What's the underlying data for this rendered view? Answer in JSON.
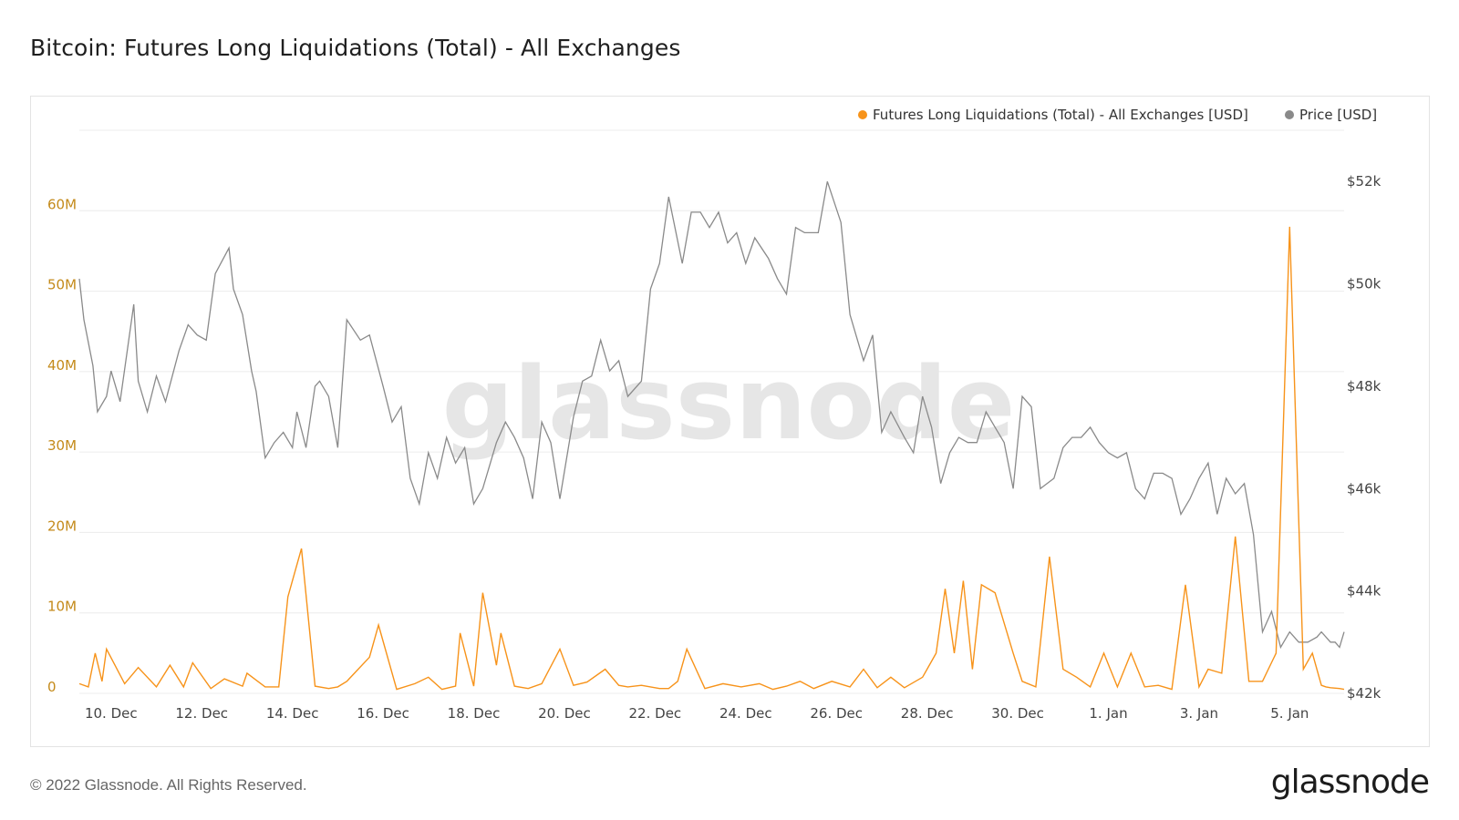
{
  "title": "Bitcoin: Futures Long Liquidations (Total) - All Exchanges",
  "footer": {
    "copyright": "© 2022 Glassnode. All Rights Reserved.",
    "logo": "glassnode"
  },
  "watermark": "glassnode",
  "colors": {
    "liquidations": "#f7931a",
    "price": "#8a8a8a",
    "left_axis_text": "#c48a1a",
    "grid": "#ececec"
  },
  "chart_data": {
    "type": "line",
    "title": "Bitcoin: Futures Long Liquidations (Total) - All Exchanges",
    "legend": [
      {
        "name": "Futures Long Liquidations (Total) - All Exchanges [USD]",
        "color": "#f7931a"
      },
      {
        "name": "Price [USD]",
        "color": "#8a8a8a"
      }
    ],
    "legend_position": "top-right",
    "grid": true,
    "x_ticks": [
      "10. Dec",
      "12. Dec",
      "14. Dec",
      "16. Dec",
      "18. Dec",
      "20. Dec",
      "22. Dec",
      "24. Dec",
      "26. Dec",
      "28. Dec",
      "30. Dec",
      "1. Jan",
      "3. Jan",
      "5. Jan"
    ],
    "x_range_days": [
      -0.7,
      27.2
    ],
    "y_left": {
      "ticks": [
        "0",
        "10M",
        "20M",
        "30M",
        "40M",
        "50M",
        "60M"
      ],
      "range": [
        0,
        70000000
      ]
    },
    "y_right": {
      "ticks": [
        "$42k",
        "$44k",
        "$46k",
        "$48k",
        "$50k",
        "$52k"
      ],
      "range": [
        42000,
        53000
      ]
    },
    "series": [
      {
        "name": "Futures Long Liquidations (Total) - All Exchanges [USD]",
        "axis": "left",
        "x_days": [
          -0.7,
          -0.5,
          -0.35,
          -0.2,
          -0.1,
          0.3,
          0.6,
          1.0,
          1.3,
          1.6,
          1.8,
          2.2,
          2.5,
          2.9,
          3.0,
          3.4,
          3.7,
          3.9,
          4.2,
          4.5,
          4.8,
          5.0,
          5.2,
          5.7,
          5.9,
          6.3,
          6.7,
          7.0,
          7.3,
          7.6,
          7.7,
          8.0,
          8.2,
          8.5,
          8.6,
          8.9,
          9.2,
          9.5,
          9.9,
          10.2,
          10.5,
          10.9,
          11.2,
          11.4,
          11.7,
          12.1,
          12.3,
          12.5,
          12.7,
          13.1,
          13.5,
          13.9,
          14.3,
          14.6,
          14.9,
          15.2,
          15.5,
          15.9,
          16.3,
          16.6,
          16.9,
          17.2,
          17.5,
          17.9,
          18.2,
          18.4,
          18.6,
          18.8,
          19.0,
          19.2,
          19.5,
          19.9,
          20.1,
          20.4,
          20.7,
          21.0,
          21.3,
          21.6,
          21.9,
          22.2,
          22.5,
          22.8,
          23.1,
          23.4,
          23.7,
          24.0,
          24.2,
          24.5,
          24.8,
          25.1,
          25.4,
          25.7,
          26.0,
          26.3,
          26.5,
          26.7,
          26.8,
          26.9,
          27.1,
          27.2
        ],
        "values": [
          1200000,
          800000,
          5000000,
          1500000,
          5500000,
          1200000,
          3200000,
          800000,
          3500000,
          800000,
          3800000,
          600000,
          1800000,
          900000,
          2500000,
          800000,
          800000,
          12000000,
          18000000,
          900000,
          600000,
          800000,
          1500000,
          4500000,
          8500000,
          500000,
          1200000,
          2000000,
          500000,
          900000,
          7500000,
          900000,
          12500000,
          3500000,
          7500000,
          900000,
          600000,
          1200000,
          5500000,
          1000000,
          1400000,
          3000000,
          1000000,
          800000,
          1000000,
          600000,
          600000,
          1500000,
          5500000,
          600000,
          1200000,
          800000,
          1200000,
          500000,
          900000,
          1500000,
          600000,
          1500000,
          800000,
          3000000,
          700000,
          2000000,
          700000,
          2000000,
          5000000,
          13000000,
          5000000,
          14000000,
          3000000,
          13500000,
          12500000,
          5000000,
          1500000,
          800000,
          17000000,
          3000000,
          2000000,
          800000,
          5000000,
          800000,
          5000000,
          800000,
          1000000,
          500000,
          13500000,
          800000,
          3000000,
          2500000,
          19500000,
          1500000,
          1500000,
          5000000,
          58000000,
          3000000,
          5000000,
          1000000,
          800000,
          700000,
          600000,
          500000
        ]
      },
      {
        "name": "Price [USD]",
        "axis": "right",
        "x_days": [
          -0.7,
          -0.6,
          -0.4,
          -0.3,
          -0.1,
          0.0,
          0.2,
          0.5,
          0.6,
          0.8,
          1.0,
          1.2,
          1.5,
          1.7,
          1.9,
          2.1,
          2.3,
          2.6,
          2.7,
          2.9,
          3.1,
          3.2,
          3.4,
          3.6,
          3.8,
          4.0,
          4.1,
          4.3,
          4.5,
          4.6,
          4.8,
          5.0,
          5.2,
          5.5,
          5.7,
          6.0,
          6.2,
          6.4,
          6.6,
          6.8,
          7.0,
          7.2,
          7.4,
          7.6,
          7.8,
          8.0,
          8.2,
          8.5,
          8.7,
          8.9,
          9.1,
          9.3,
          9.5,
          9.7,
          9.9,
          10.2,
          10.4,
          10.6,
          10.8,
          11.0,
          11.2,
          11.4,
          11.7,
          11.9,
          12.1,
          12.3,
          12.6,
          12.8,
          13.0,
          13.2,
          13.4,
          13.6,
          13.8,
          14.0,
          14.2,
          14.5,
          14.7,
          14.9,
          15.1,
          15.3,
          15.6,
          15.8,
          16.1,
          16.3,
          16.6,
          16.8,
          17.0,
          17.2,
          17.5,
          17.7,
          17.9,
          18.1,
          18.3,
          18.5,
          18.7,
          18.9,
          19.1,
          19.3,
          19.5,
          19.7,
          19.9,
          20.1,
          20.3,
          20.5,
          20.8,
          21.0,
          21.2,
          21.4,
          21.6,
          21.8,
          22.0,
          22.2,
          22.4,
          22.6,
          22.8,
          23.0,
          23.2,
          23.4,
          23.6,
          23.8,
          24.0,
          24.2,
          24.4,
          24.6,
          24.8,
          25.0,
          25.2,
          25.4,
          25.6,
          25.8,
          26.0,
          26.2,
          26.4,
          26.6,
          26.7,
          26.8,
          26.9,
          27.0,
          27.1,
          27.2
        ],
        "values": [
          50100,
          49300,
          48400,
          47500,
          47800,
          48300,
          47700,
          49600,
          48100,
          47500,
          48200,
          47700,
          48700,
          49200,
          49000,
          48900,
          50200,
          50700,
          49900,
          49400,
          48300,
          47900,
          46600,
          46900,
          47100,
          46800,
          47500,
          46800,
          48000,
          48100,
          47800,
          46800,
          49300,
          48900,
          49000,
          48000,
          47300,
          47600,
          46200,
          45700,
          46700,
          46200,
          47000,
          46500,
          46800,
          45700,
          46000,
          46900,
          47300,
          47000,
          46600,
          45800,
          47300,
          46900,
          45800,
          47400,
          48100,
          48200,
          48900,
          48300,
          48500,
          47800,
          48100,
          49900,
          50400,
          51700,
          50400,
          51400,
          51400,
          51100,
          51400,
          50800,
          51000,
          50400,
          50900,
          50500,
          50100,
          49800,
          51100,
          51000,
          51000,
          52000,
          51200,
          49400,
          48500,
          49000,
          47100,
          47500,
          47000,
          46700,
          47800,
          47200,
          46100,
          46700,
          47000,
          46900,
          46900,
          47500,
          47200,
          46900,
          46000,
          47800,
          47600,
          46000,
          46200,
          46800,
          47000,
          47000,
          47200,
          46900,
          46700,
          46600,
          46700,
          46000,
          45800,
          46300,
          46300,
          46200,
          45500,
          45800,
          46200,
          46500,
          45500,
          46200,
          45900,
          46100,
          45100,
          43200,
          43600,
          42900,
          43200,
          43000,
          43000,
          43100,
          43200,
          43100,
          43000,
          43000,
          42900,
          43200
        ]
      }
    ]
  }
}
